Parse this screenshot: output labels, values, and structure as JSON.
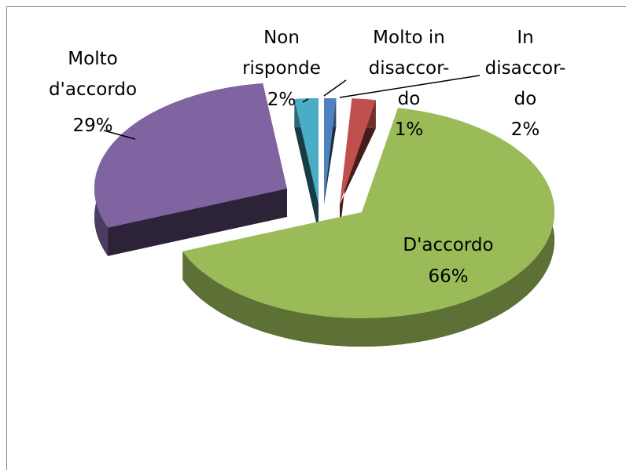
{
  "chart_data": {
    "type": "pie",
    "categories": [
      "Molto in disaccor-do",
      "In disaccor-do",
      "D'accordo",
      "Molto d'accordo",
      "Non risponde"
    ],
    "values": [
      1,
      2,
      66,
      29,
      2
    ],
    "value_labels": [
      "1%",
      "2%",
      "66%",
      "29%",
      "2%"
    ],
    "colors": [
      "#4f81bd",
      "#c0504d",
      "#9bbb59",
      "#8064a2",
      "#4bacc6"
    ]
  }
}
